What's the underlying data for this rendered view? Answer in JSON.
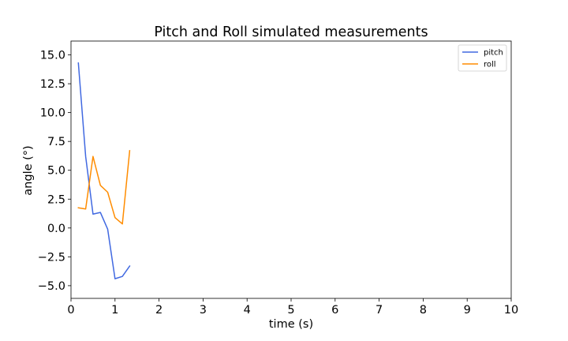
{
  "chart_data": {
    "type": "line",
    "title": "Pitch and Roll simulated measurements",
    "xlabel": "time (s)",
    "ylabel": "angle (°)",
    "xlim": [
      0,
      10
    ],
    "ylim": [
      -6.1,
      16.2
    ],
    "xticks": [
      0,
      1,
      2,
      3,
      4,
      5,
      6,
      7,
      8,
      9,
      10
    ],
    "yticks": [
      -5.0,
      -2.5,
      0.0,
      2.5,
      5.0,
      7.5,
      10.0,
      12.5,
      15.0
    ],
    "xtick_labels": [
      "0",
      "1",
      "2",
      "3",
      "4",
      "5",
      "6",
      "7",
      "8",
      "9",
      "10"
    ],
    "ytick_labels": [
      "−5.0",
      "−2.5",
      "0.0",
      "2.5",
      "5.0",
      "7.5",
      "10.0",
      "12.5",
      "15.0"
    ],
    "grid": false,
    "legend_position": "top-right",
    "series": [
      {
        "name": "pitch",
        "color": "#4169e1",
        "x": [
          0.167,
          0.333,
          0.5,
          0.667,
          0.833,
          1.0,
          1.167,
          1.333
        ],
        "y": [
          14.3,
          6.2,
          1.2,
          1.35,
          -0.1,
          -4.4,
          -4.2,
          -3.3
        ]
      },
      {
        "name": "roll",
        "color": "#ff8c00",
        "x": [
          0.167,
          0.333,
          0.5,
          0.667,
          0.833,
          1.0,
          1.167,
          1.333
        ],
        "y": [
          1.75,
          1.65,
          6.2,
          3.7,
          3.1,
          0.9,
          0.35,
          6.7
        ]
      }
    ]
  }
}
